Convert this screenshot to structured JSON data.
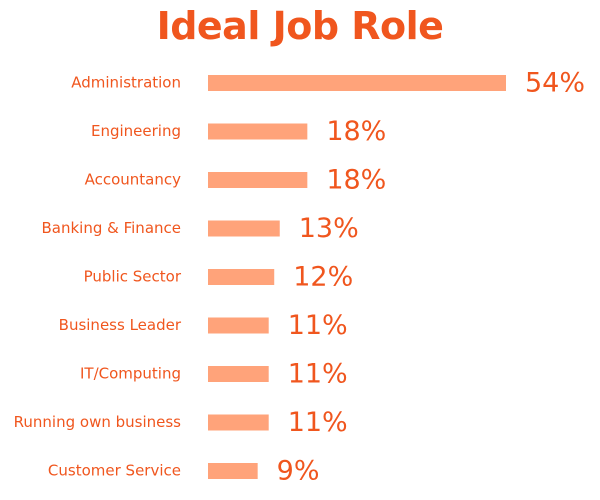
{
  "colors": {
    "bar": "#ffa37a",
    "text": "#f0561e",
    "background": "#ffffff"
  },
  "chart_data": {
    "type": "bar",
    "orientation": "horizontal",
    "title": "Ideal Job Role",
    "xlabel": "",
    "ylabel": "",
    "grid": false,
    "legend": "none",
    "xlim": [
      0,
      54
    ],
    "value_suffix": "%",
    "categories": [
      "Administration",
      "Engineering",
      "Accountancy",
      "Banking & Finance",
      "Public Sector",
      "Business Leader",
      "IT/Computing",
      "Running own business",
      "Customer Service"
    ],
    "values": [
      54,
      18,
      18,
      13,
      12,
      11,
      11,
      11,
      9
    ],
    "value_labels": [
      "54%",
      "18%",
      "18%",
      "13%",
      "12%",
      "11%",
      "11%",
      "11%",
      "9%"
    ]
  }
}
